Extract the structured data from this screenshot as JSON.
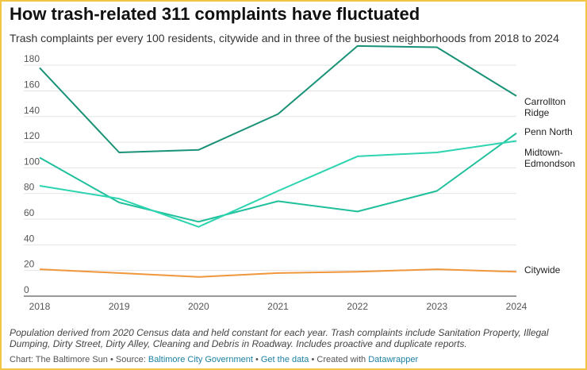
{
  "title": "How trash-related 311 complaints have fluctuated",
  "subtitle": "Trash complaints per every 100 residents, citywide and in three of the busiest neighborhoods from 2018 to 2024",
  "notes": "Population derived from 2020 Census data and held constant for each year. Trash complaints include Sanitation Property, Illegal Dumping, Dirty Street, Dirty Alley, Cleaning and Debris in Roadway. Includes proactive and duplicate reports.",
  "credits": {
    "chart_by": "Chart: The Baltimore Sun",
    "sep": " • ",
    "source_label": "Source: ",
    "source_link": "Baltimore City Government",
    "get_data": "Get the data",
    "created_with": "Created with ",
    "tool": "Datawrapper"
  },
  "colors": {
    "carrollton": "#1a9277",
    "penn_north": "#1fbf9c",
    "midtown": "#2dd4b0",
    "citywide": "#f0973c",
    "gridline": "#e3e3e3",
    "axis_text": "#555555"
  },
  "chart_data": {
    "type": "line",
    "x": [
      2018,
      2019,
      2020,
      2021,
      2022,
      2023,
      2024
    ],
    "ylim": [
      0,
      190
    ],
    "yticks": [
      0,
      20,
      40,
      60,
      80,
      100,
      120,
      140,
      160,
      180
    ],
    "grid": true,
    "legend": "direct labels at right end of lines",
    "series": [
      {
        "key": "carrollton",
        "name": "Carrollton Ridge",
        "label_lines": [
          "Carrollton",
          "Ridge"
        ],
        "values": [
          178,
          112,
          114,
          142,
          195,
          194,
          156
        ]
      },
      {
        "key": "penn_north",
        "name": "Penn North",
        "label_lines": [
          "Penn North"
        ],
        "values": [
          108,
          73,
          58,
          74,
          66,
          82,
          127
        ]
      },
      {
        "key": "midtown",
        "name": "Midtown-Edmondson",
        "label_lines": [
          "Midtown-",
          "Edmondson"
        ],
        "values": [
          86,
          76,
          54,
          82,
          109,
          112,
          121
        ]
      },
      {
        "key": "citywide",
        "name": "Citywide",
        "label_lines": [
          "Citywide"
        ],
        "values": [
          21,
          18,
          15,
          18,
          19,
          21,
          19
        ]
      }
    ]
  }
}
